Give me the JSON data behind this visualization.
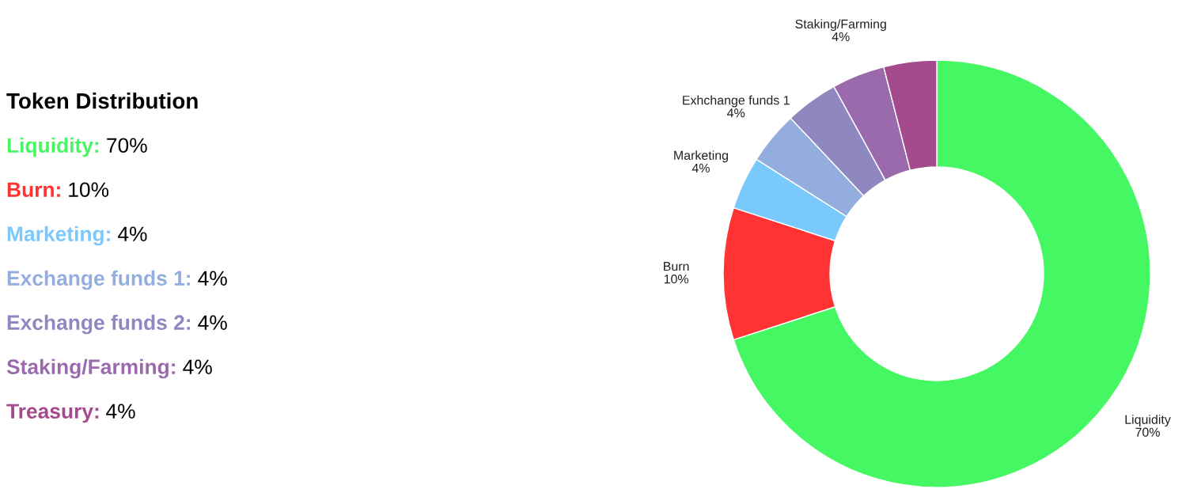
{
  "chart_data": [
    {
      "type": "other",
      "title": "Token Distribution",
      "annotations": [
        "Liquidity: 70%",
        "Burn: 10%",
        "Marketing: 4%",
        "Exchange funds 1: 4%",
        "Exchange funds 2: 4%",
        "Staking/Farming: 4%",
        "Treasury: 4%"
      ],
      "colors": [
        "#45f863",
        "#ff3333",
        "#7ac8fd",
        "#93aede",
        "#8e87c0",
        "#9a6aac",
        "#a64a8e"
      ]
    },
    {
      "type": "donut",
      "categories": [
        "Liquidity",
        "Burn",
        "Marketing",
        "Exhchange funds 1",
        null,
        "Staking/Farming",
        null
      ],
      "values": [
        70,
        10,
        4,
        4,
        4,
        4,
        4
      ],
      "colors": [
        "#45f863",
        "#ff3333",
        "#79c9fd",
        "#93aede",
        "#8e87c0",
        "#9a6aac",
        "#a64a8e"
      ],
      "value_labels": [
        "70%",
        "10%",
        "4%",
        "4%",
        null,
        "4%",
        null
      ]
    }
  ]
}
